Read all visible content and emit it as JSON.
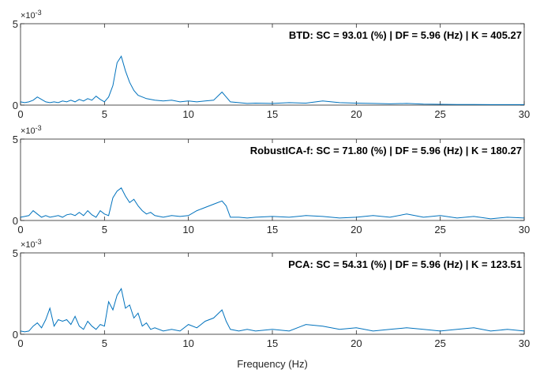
{
  "figure": {
    "xlabel": "Frequency (Hz)",
    "exponent_label": "×10",
    "exponent_power": "-3"
  },
  "chart_data": [
    {
      "type": "line",
      "annotation": "BTD: SC = 93.01 (%) | DF = 5.96 (Hz) | K = 405.27",
      "xlim": [
        0,
        30
      ],
      "ylim": [
        0,
        5
      ],
      "xticks": [
        "0",
        "5",
        "10",
        "15",
        "20",
        "25",
        "30"
      ],
      "yticks": [
        "0",
        "5"
      ],
      "color": "#0072bd",
      "x": [
        0,
        0.25,
        0.5,
        0.75,
        1,
        1.25,
        1.5,
        1.75,
        2,
        2.25,
        2.5,
        2.75,
        3,
        3.25,
        3.5,
        3.75,
        4,
        4.25,
        4.5,
        4.75,
        5,
        5.25,
        5.5,
        5.75,
        6,
        6.25,
        6.5,
        6.75,
        7,
        7.25,
        7.5,
        7.75,
        8,
        8.5,
        9,
        9.5,
        10,
        10.5,
        11,
        11.5,
        12,
        12.25,
        12.5,
        13,
        13.5,
        14,
        15,
        16,
        17,
        18,
        19,
        20,
        21,
        22,
        23,
        24,
        25,
        26,
        27,
        28,
        29,
        30
      ],
      "values": [
        0.2,
        0.15,
        0.2,
        0.3,
        0.5,
        0.35,
        0.2,
        0.15,
        0.2,
        0.15,
        0.25,
        0.2,
        0.3,
        0.2,
        0.35,
        0.25,
        0.4,
        0.3,
        0.55,
        0.35,
        0.2,
        0.5,
        1.2,
        2.6,
        3.0,
        2.1,
        1.4,
        0.9,
        0.6,
        0.5,
        0.4,
        0.35,
        0.3,
        0.25,
        0.3,
        0.2,
        0.25,
        0.2,
        0.25,
        0.3,
        0.8,
        0.5,
        0.2,
        0.15,
        0.1,
        0.12,
        0.1,
        0.15,
        0.12,
        0.25,
        0.15,
        0.12,
        0.1,
        0.08,
        0.1,
        0.06,
        0.05,
        0.04,
        0.04,
        0.03,
        0.03,
        0.03
      ]
    },
    {
      "type": "line",
      "annotation": "RobustICA-f: SC = 71.80 (%) | DF = 5.96 (Hz) | K = 180.27",
      "xlim": [
        0,
        30
      ],
      "ylim": [
        0,
        5
      ],
      "xticks": [
        "0",
        "5",
        "10",
        "15",
        "20",
        "25",
        "30"
      ],
      "yticks": [
        "0",
        "5"
      ],
      "color": "#0072bd",
      "x": [
        0,
        0.25,
        0.5,
        0.75,
        1,
        1.25,
        1.5,
        1.75,
        2,
        2.25,
        2.5,
        2.75,
        3,
        3.25,
        3.5,
        3.75,
        4,
        4.25,
        4.5,
        4.75,
        5,
        5.25,
        5.5,
        5.75,
        6,
        6.25,
        6.5,
        6.75,
        7,
        7.25,
        7.5,
        7.75,
        8,
        8.5,
        9,
        9.5,
        10,
        10.5,
        11,
        11.5,
        12,
        12.25,
        12.5,
        13,
        13.5,
        14,
        15,
        16,
        17,
        18,
        19,
        20,
        21,
        22,
        23,
        24,
        25,
        26,
        27,
        28,
        29,
        30
      ],
      "values": [
        0.2,
        0.25,
        0.3,
        0.6,
        0.4,
        0.2,
        0.3,
        0.2,
        0.25,
        0.3,
        0.2,
        0.35,
        0.4,
        0.3,
        0.5,
        0.3,
        0.6,
        0.35,
        0.2,
        0.6,
        0.4,
        0.3,
        1.4,
        1.8,
        2.0,
        1.5,
        1.1,
        1.3,
        0.9,
        0.6,
        0.4,
        0.5,
        0.3,
        0.2,
        0.3,
        0.25,
        0.3,
        0.6,
        0.8,
        1.0,
        1.2,
        0.9,
        0.2,
        0.2,
        0.15,
        0.2,
        0.25,
        0.2,
        0.3,
        0.25,
        0.15,
        0.2,
        0.3,
        0.2,
        0.4,
        0.2,
        0.3,
        0.15,
        0.25,
        0.1,
        0.2,
        0.15
      ]
    },
    {
      "type": "line",
      "annotation": "PCA: SC = 54.31 (%) | DF = 5.96 (Hz) | K = 123.51",
      "xlim": [
        0,
        30
      ],
      "ylim": [
        0,
        5
      ],
      "xticks": [
        "0",
        "5",
        "10",
        "15",
        "20",
        "25",
        "30"
      ],
      "yticks": [
        "0",
        "5"
      ],
      "color": "#0072bd",
      "x": [
        0,
        0.25,
        0.5,
        0.75,
        1,
        1.25,
        1.5,
        1.75,
        2,
        2.25,
        2.5,
        2.75,
        3,
        3.25,
        3.5,
        3.75,
        4,
        4.25,
        4.5,
        4.75,
        5,
        5.25,
        5.5,
        5.75,
        6,
        6.25,
        6.5,
        6.75,
        7,
        7.25,
        7.5,
        7.75,
        8,
        8.5,
        9,
        9.5,
        10,
        10.5,
        11,
        11.5,
        12,
        12.25,
        12.5,
        13,
        13.5,
        14,
        15,
        16,
        17,
        18,
        19,
        20,
        21,
        22,
        23,
        24,
        25,
        26,
        27,
        28,
        29,
        30
      ],
      "values": [
        0.2,
        0.15,
        0.2,
        0.5,
        0.7,
        0.4,
        0.9,
        1.6,
        0.5,
        0.9,
        0.8,
        0.9,
        0.6,
        1.1,
        0.5,
        0.3,
        0.8,
        0.5,
        0.3,
        0.6,
        0.5,
        2.0,
        1.5,
        2.4,
        2.8,
        1.6,
        1.8,
        1.0,
        1.3,
        0.5,
        0.7,
        0.3,
        0.4,
        0.2,
        0.3,
        0.2,
        0.6,
        0.4,
        0.8,
        1.0,
        1.5,
        0.8,
        0.3,
        0.2,
        0.3,
        0.2,
        0.3,
        0.2,
        0.6,
        0.5,
        0.3,
        0.4,
        0.2,
        0.3,
        0.4,
        0.3,
        0.2,
        0.3,
        0.4,
        0.2,
        0.3,
        0.2
      ]
    }
  ]
}
